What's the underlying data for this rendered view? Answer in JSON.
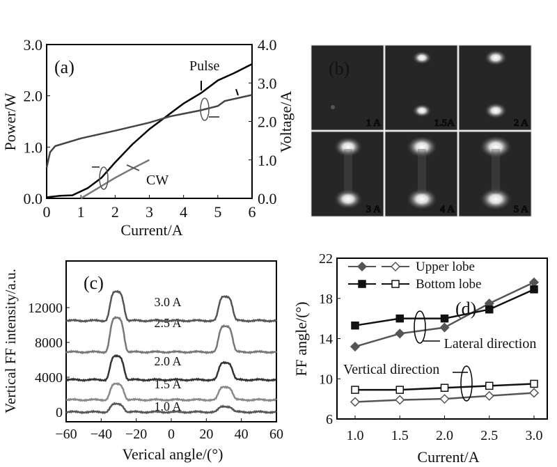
{
  "chart_data": [
    {
      "panel": "(a)",
      "type": "line",
      "xlabel": "Current/A",
      "ylabel": "Power/W",
      "y2label": "Voltage/A",
      "xlim": [
        0,
        6
      ],
      "ylim": [
        0,
        3
      ],
      "y2lim": [
        0,
        4
      ],
      "xticks": [
        "0",
        "1",
        "2",
        "3",
        "4",
        "5",
        "6"
      ],
      "yticks": [
        "0.0",
        "1.0",
        "2.0",
        "3.0"
      ],
      "y2ticks": [
        "0.0",
        "1.0",
        "2.0",
        "3.0",
        "4.0"
      ],
      "annotations": [
        "Pulse",
        "CW"
      ],
      "series": [
        {
          "name": "Pulse power",
          "axis": "left",
          "x": [
            0,
            0.4,
            0.75,
            1.2,
            1.6,
            2,
            2.5,
            3,
            3.5,
            4,
            4.5,
            5,
            5.5,
            6
          ],
          "y": [
            0.02,
            0.05,
            0.06,
            0.2,
            0.4,
            0.7,
            1.05,
            1.35,
            1.6,
            1.85,
            2.05,
            2.3,
            2.45,
            2.62
          ],
          "color": "#000000"
        },
        {
          "name": "CW power",
          "axis": "left",
          "x": [
            1,
            1.5,
            2,
            2.5,
            3
          ],
          "y": [
            0,
            0.2,
            0.4,
            0.58,
            0.75
          ],
          "color": "#777777"
        },
        {
          "name": "Voltage",
          "axis": "right",
          "x": [
            0,
            0.1,
            0.25,
            1,
            2,
            3,
            3.6,
            4.5,
            5,
            5.2,
            6
          ],
          "y": [
            0.8,
            1.2,
            1.36,
            1.56,
            1.76,
            1.97,
            2.13,
            2.29,
            2.4,
            2.53,
            2.69
          ],
          "color": "#444444"
        }
      ]
    },
    {
      "panel": "(b)",
      "type": "image-grid",
      "labels": [
        "1 A",
        "1.5A",
        "2 A",
        "3 A",
        "4 A",
        "5 A"
      ],
      "intensity": [
        0.15,
        0.45,
        0.6,
        0.85,
        0.95,
        1.0
      ]
    },
    {
      "panel": "(c)",
      "type": "line",
      "xlabel": "Verical angle/(°)",
      "ylabel": "Vertical FF intensity/a.u.",
      "xlim": [
        -60,
        60
      ],
      "ylim": [
        -1000,
        14500
      ],
      "xticks": [
        "−60",
        "−40",
        "−20",
        "0",
        "20",
        "40",
        "60"
      ],
      "yticks": [
        "0",
        "4000",
        "8000",
        "12000"
      ],
      "series": [
        {
          "name": "1.0 A",
          "baseline": 0,
          "left_peak": 900,
          "right_peak": 650,
          "color": "#555555"
        },
        {
          "name": "1.5 A",
          "baseline": 1400,
          "left_peak": 3200,
          "right_peak": 2900,
          "color": "#888888"
        },
        {
          "name": "2.0 A",
          "baseline": 3700,
          "left_peak": 6400,
          "right_peak": 5700,
          "color": "#333333"
        },
        {
          "name": "2.5 A",
          "baseline": 6900,
          "left_peak": 10800,
          "right_peak": 9900,
          "color": "#777777"
        },
        {
          "name": "3.0 A",
          "baseline": 10500,
          "left_peak": 13800,
          "right_peak": 13300,
          "color": "#555555"
        }
      ],
      "peak_positions": [
        -31,
        31
      ]
    },
    {
      "panel": "(d)",
      "type": "line",
      "xlabel": "Current/A",
      "ylabel": "FF angle/(°)",
      "xlim": [
        0.85,
        3.15
      ],
      "ylim": [
        6,
        22
      ],
      "xticks": [
        "1.0",
        "1.5",
        "2.0",
        "2.5",
        "3.0"
      ],
      "yticks": [
        "6",
        "10",
        "14",
        "18",
        "22"
      ],
      "legend": [
        "Upper lobe",
        "Bottom lobe"
      ],
      "annotations": [
        "Lateral direction",
        "Vertical direction"
      ],
      "x": [
        1.0,
        1.5,
        2.0,
        2.5,
        3.0
      ],
      "series": [
        {
          "name": "Upper lobe lateral",
          "marker": "diamond-filled",
          "values": [
            13.2,
            14.5,
            15.1,
            17.5,
            19.6
          ],
          "color": "#555555"
        },
        {
          "name": "Bottom lobe lateral",
          "marker": "square-filled",
          "values": [
            15.3,
            16.0,
            16.0,
            16.9,
            18.9
          ],
          "color": "#111111"
        },
        {
          "name": "Upper lobe vertical",
          "marker": "diamond-open",
          "values": [
            7.7,
            7.9,
            8.0,
            8.3,
            8.6
          ],
          "color": "#555555"
        },
        {
          "name": "Bottom lobe vertical",
          "marker": "square-open",
          "values": [
            8.9,
            8.9,
            9.1,
            9.3,
            9.5
          ],
          "color": "#111111"
        }
      ]
    }
  ]
}
